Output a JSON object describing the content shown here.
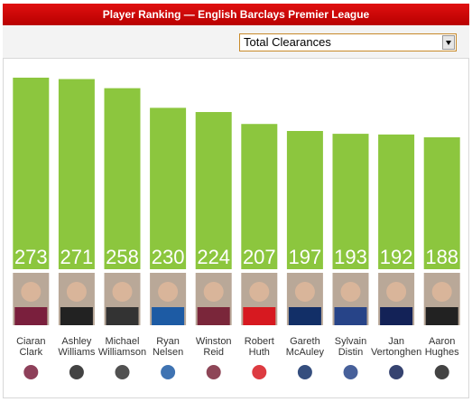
{
  "chart_data": {
    "type": "bar",
    "title": "Player Ranking — English Barclays Premier League",
    "metric": "Total Clearances",
    "categories": [
      "Ciaran Clark",
      "Ashley Williams",
      "Michael Williamson",
      "Ryan Nelsen",
      "Winston Reid",
      "Robert Huth",
      "Gareth McAuley",
      "Sylvain Distin",
      "Jan Vertonghen",
      "Aaron Hughes"
    ],
    "values": [
      273,
      271,
      258,
      230,
      224,
      207,
      197,
      193,
      192,
      188
    ],
    "color": "#8cc63e",
    "ylim": [
      0,
      300
    ]
  }
}
